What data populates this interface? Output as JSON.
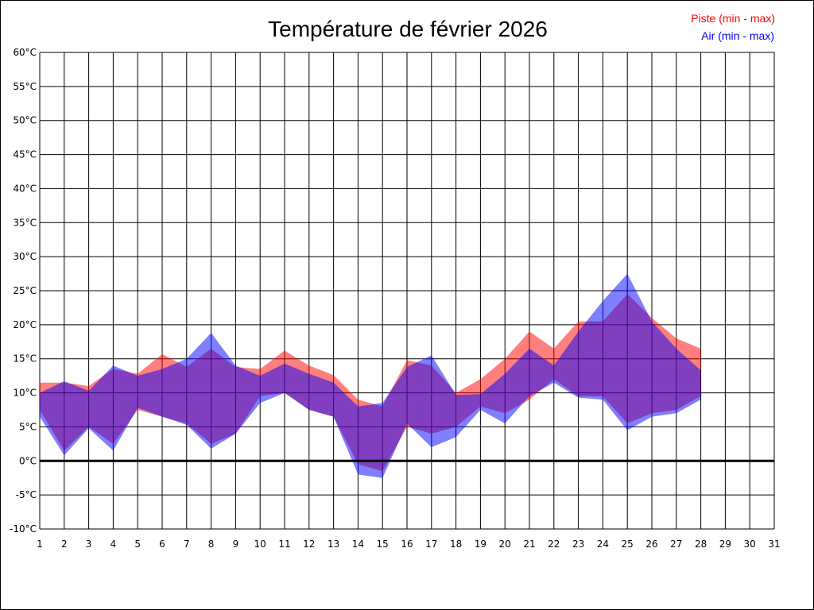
{
  "chart_data": {
    "type": "area",
    "title": "Température de février 2026",
    "legend": {
      "placement": "top-right",
      "entries": [
        "Piste (min - max)",
        "Air (min - max)"
      ]
    },
    "colors": {
      "piste": "#ff0000",
      "air": "#0000ff",
      "overlap": "#7f3fbf"
    },
    "x": [
      1,
      2,
      3,
      4,
      5,
      6,
      7,
      8,
      9,
      10,
      11,
      12,
      13,
      14,
      15,
      16,
      17,
      18,
      19,
      20,
      21,
      22,
      23,
      24,
      25,
      26,
      27,
      28
    ],
    "xticks": [
      "1",
      "2",
      "3",
      "4",
      "5",
      "6",
      "7",
      "8",
      "9",
      "10",
      "11",
      "12",
      "13",
      "14",
      "15",
      "16",
      "17",
      "18",
      "19",
      "20",
      "21",
      "22",
      "23",
      "24",
      "25",
      "26",
      "27",
      "28",
      "29",
      "30",
      "31"
    ],
    "xlim": [
      1,
      31
    ],
    "ylim": [
      -10,
      60
    ],
    "yticks": [
      "-10°C",
      "-5°C",
      "0°C",
      "5°C",
      "10°C",
      "15°C",
      "20°C",
      "25°C",
      "30°C",
      "35°C",
      "40°C",
      "45°C",
      "50°C",
      "55°C",
      "60°C"
    ],
    "grid": true,
    "series": [
      {
        "name": "Piste (min - max)",
        "min": [
          7.5,
          1.5,
          5.0,
          2.5,
          7.5,
          6.5,
          5.5,
          2.5,
          4.0,
          9.5,
          10.0,
          7.5,
          6.5,
          -0.5,
          -1.5,
          5.0,
          4.0,
          5.0,
          8.0,
          7.0,
          9.0,
          12.0,
          9.5,
          9.5,
          5.5,
          7.0,
          7.5,
          9.5
        ],
        "max": [
          11.5,
          11.5,
          11.0,
          13.5,
          12.8,
          15.7,
          13.8,
          16.5,
          13.8,
          13.5,
          16.2,
          14.0,
          12.6,
          9.0,
          8.0,
          14.8,
          14.0,
          10.0,
          12.0,
          15.0,
          19.0,
          16.5,
          20.5,
          20.5,
          24.5,
          21.0,
          18.0,
          16.5
        ]
      },
      {
        "name": "Air (min - max)",
        "min": [
          6.5,
          0.8,
          4.8,
          1.5,
          7.8,
          6.5,
          5.3,
          1.8,
          4.0,
          8.5,
          10.0,
          7.5,
          6.5,
          -2.0,
          -2.5,
          5.5,
          2.0,
          3.5,
          7.5,
          5.5,
          9.5,
          11.5,
          9.3,
          9.0,
          4.5,
          6.5,
          7.0,
          9.0
        ],
        "max": [
          10.0,
          11.7,
          10.3,
          14.0,
          12.5,
          13.5,
          15.0,
          18.8,
          14.0,
          12.5,
          14.3,
          12.8,
          11.5,
          8.0,
          8.5,
          13.8,
          15.5,
          9.7,
          9.8,
          12.8,
          16.5,
          14.0,
          19.0,
          23.5,
          27.5,
          20.5,
          16.5,
          13.3
        ]
      }
    ]
  }
}
